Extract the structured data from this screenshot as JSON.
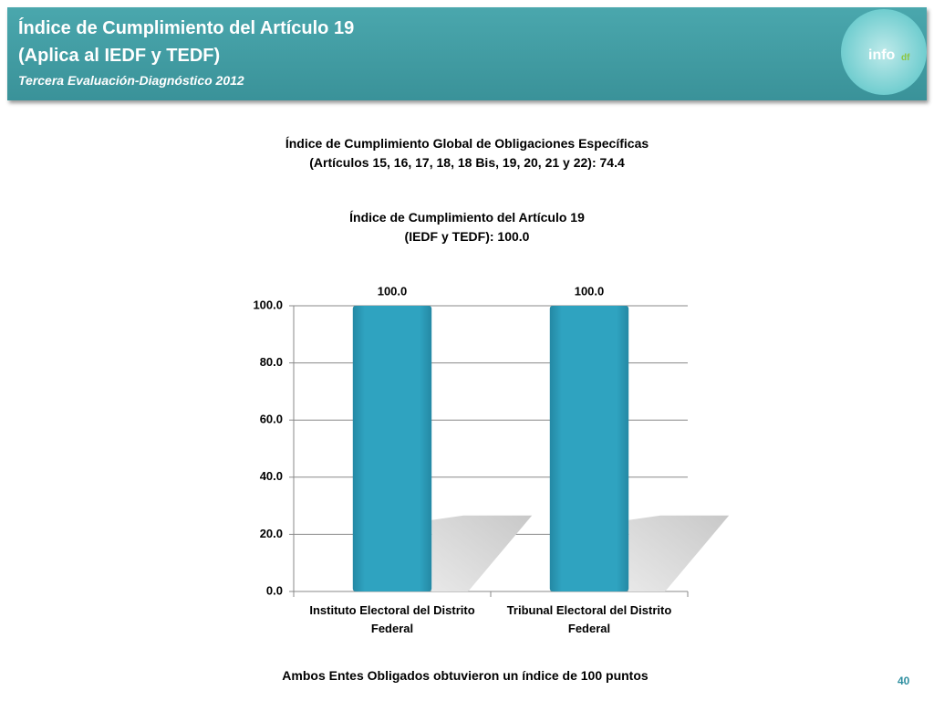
{
  "header": {
    "title": [
      "Índice de Cumplimiento del Artículo 19",
      "(Aplica al IEDF y TEDF)"
    ],
    "subtitle": "Tercera Evaluación-Diagnóstico 2012",
    "logo": [
      "info",
      "df"
    ]
  },
  "headings": [
    [
      "Índice de Cumplimiento Global de Obligaciones Específicas",
      "(Artículos 15, 16, 17, 18, 18 Bis, 19, 20, 21 y 22): 74.4"
    ],
    [
      "Índice de Cumplimiento del Artículo 19",
      "(IEDF y TEDF): 100.0"
    ]
  ],
  "chart_data": {
    "type": "bar",
    "categories": [
      "Instituto Electoral del Distrito Federal",
      "Tribunal Electoral del Distrito Federal"
    ],
    "values": [
      100,
      100
    ],
    "value_labels": [
      "100.0",
      "100.0"
    ],
    "color": "#2fa3c0",
    "ylim": [
      0,
      100
    ],
    "yticks": [
      {
        "value": 0,
        "label": "0.0"
      },
      {
        "value": 20,
        "label": "20.0"
      },
      {
        "value": 40,
        "label": "40.0"
      },
      {
        "value": 60,
        "label": "60.0"
      },
      {
        "value": 80,
        "label": "80.0"
      },
      {
        "value": 100,
        "label": "100.0"
      }
    ],
    "grid": true
  },
  "footer": {
    "note": "Ambos Entes Obligados obtuvieron un índice de 100 puntos",
    "page": "40"
  }
}
